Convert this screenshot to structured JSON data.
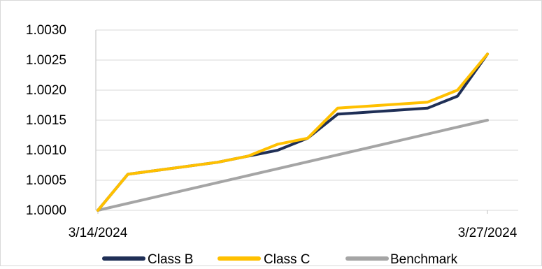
{
  "chart_data": {
    "type": "line",
    "title": "",
    "xlabel": "",
    "ylabel": "",
    "x_start": "3/14/2024",
    "x_end": "3/27/2024",
    "x_tick_labels": [
      "3/14/2024",
      "3/27/2024"
    ],
    "y_ticks": [
      "1.0000",
      "1.0005",
      "1.0010",
      "1.0015",
      "1.0020",
      "1.0025",
      "1.0030"
    ],
    "ylim": [
      1.0,
      1.003
    ],
    "grid": "horizontal",
    "legend_position": "bottom",
    "series": [
      {
        "name": "Class B",
        "color": "#1f2f56",
        "points": [
          [
            "3/14/2024",
            1.0
          ],
          [
            "3/15/2024",
            1.0006
          ],
          [
            "3/18/2024",
            1.0008
          ],
          [
            "3/19/2024",
            1.0009
          ],
          [
            "3/20/2024",
            1.001
          ],
          [
            "3/21/2024",
            1.0012
          ],
          [
            "3/22/2024",
            1.0016
          ],
          [
            "3/25/2024",
            1.0017
          ],
          [
            "3/26/2024",
            1.0019
          ],
          [
            "3/27/2024",
            1.0026
          ]
        ]
      },
      {
        "name": "Class C",
        "color": "#ffc000",
        "points": [
          [
            "3/14/2024",
            1.0
          ],
          [
            "3/15/2024",
            1.0006
          ],
          [
            "3/18/2024",
            1.0008
          ],
          [
            "3/19/2024",
            1.0009
          ],
          [
            "3/20/2024",
            1.0011
          ],
          [
            "3/21/2024",
            1.0012
          ],
          [
            "3/22/2024",
            1.0017
          ],
          [
            "3/25/2024",
            1.0018
          ],
          [
            "3/26/2024",
            1.002
          ],
          [
            "3/27/2024",
            1.0026
          ]
        ]
      },
      {
        "name": "Benchmark",
        "color": "#a5a5a5",
        "points": [
          [
            "3/14/2024",
            1.0
          ],
          [
            "3/27/2024",
            1.0015
          ]
        ]
      }
    ]
  }
}
